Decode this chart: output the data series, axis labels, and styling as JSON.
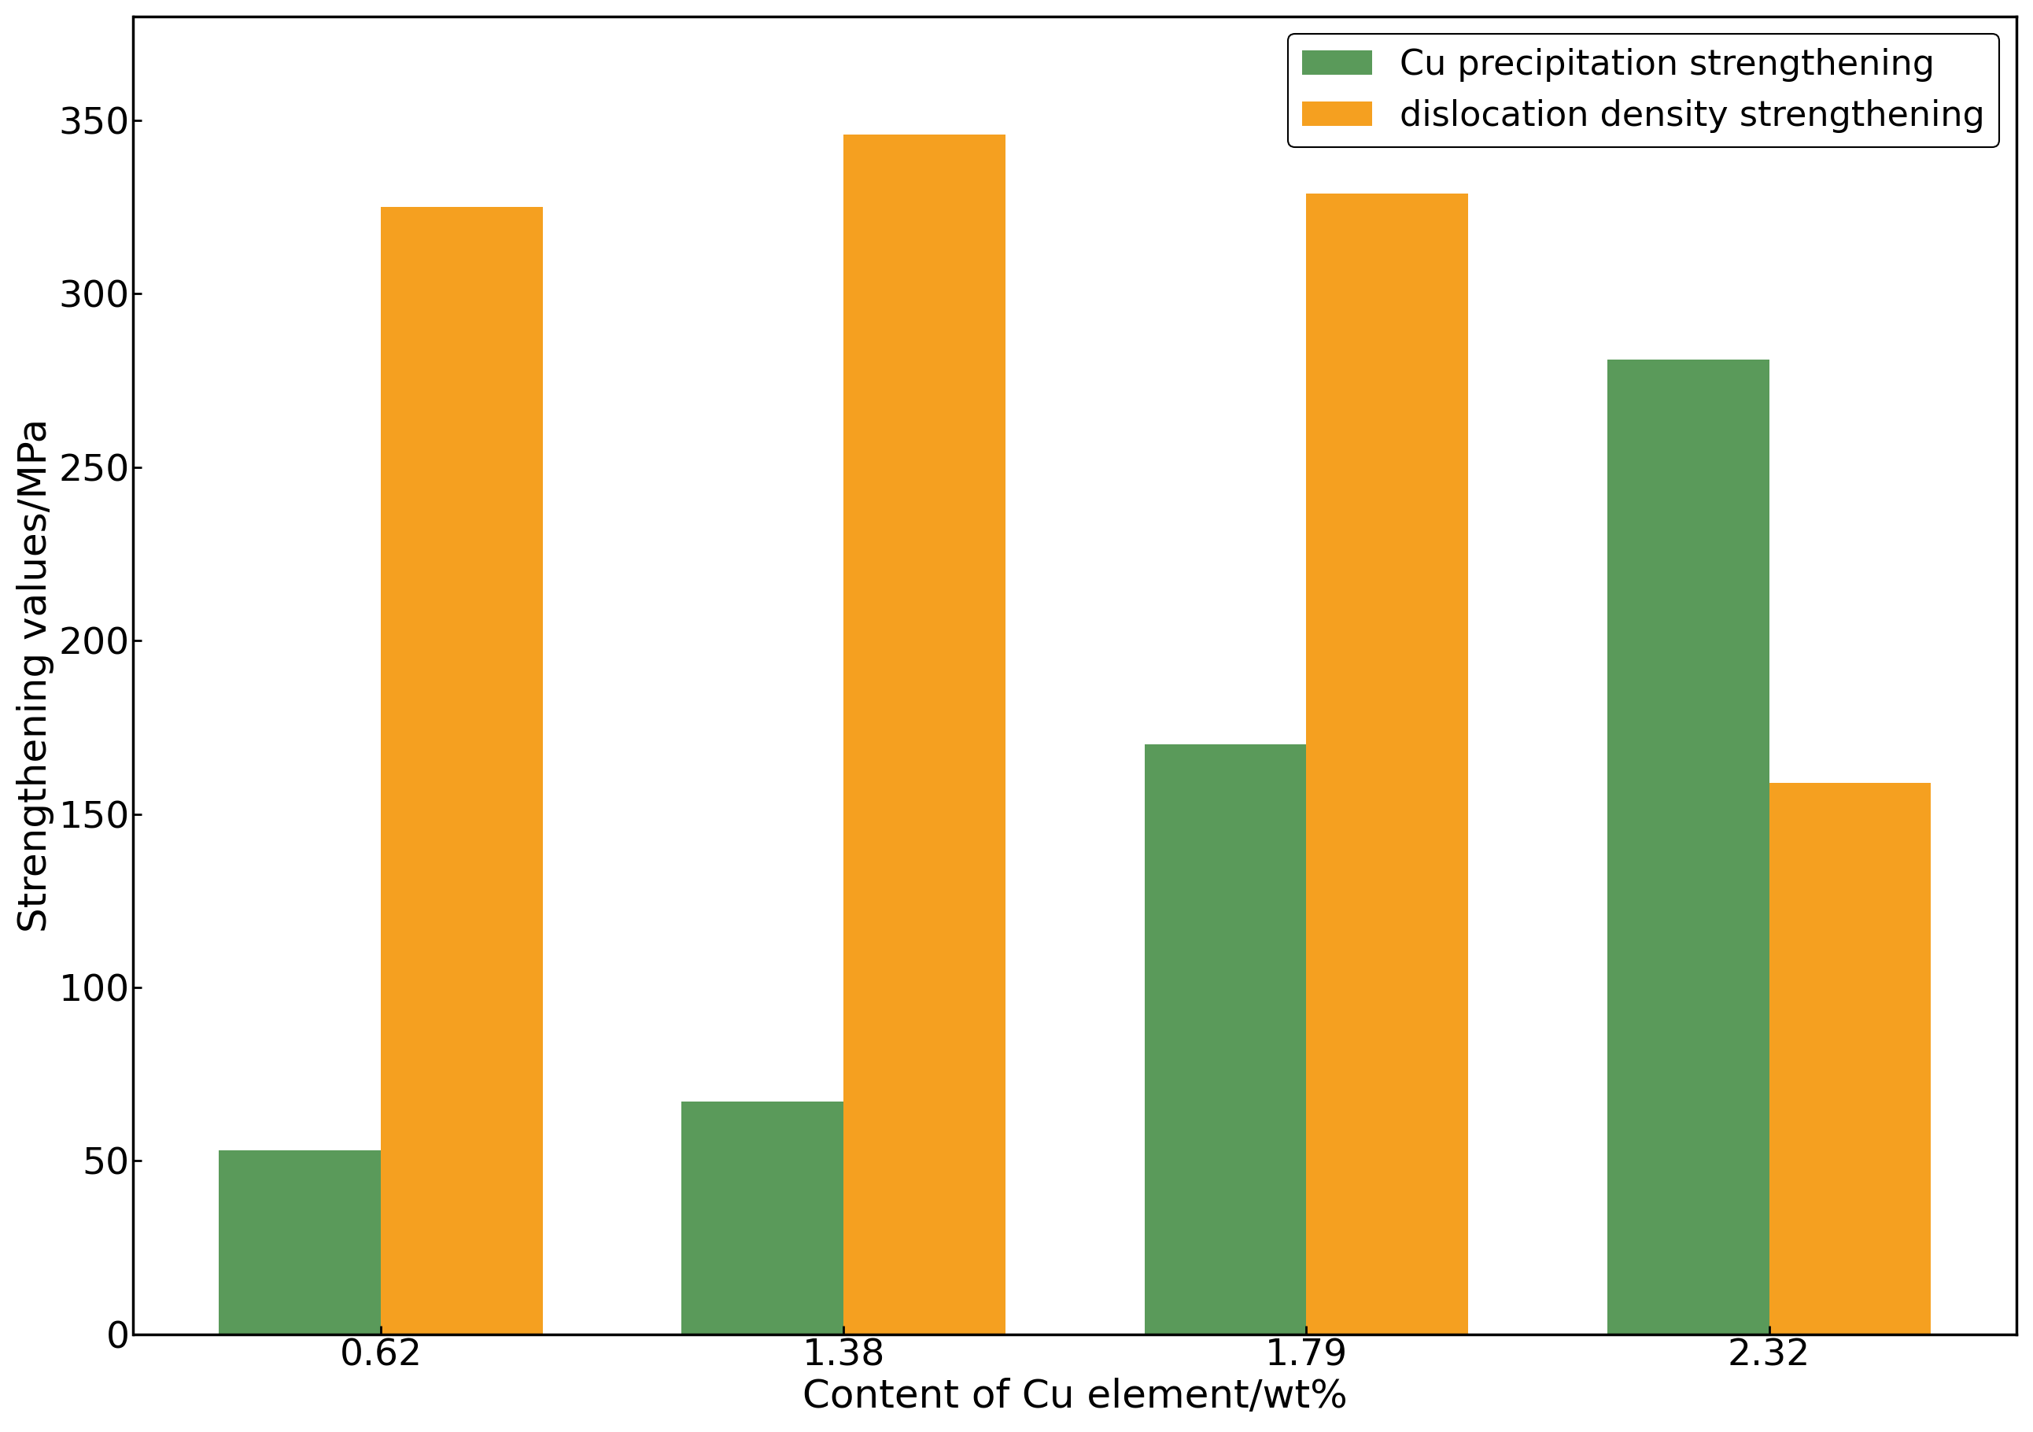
{
  "categories": [
    "0.62",
    "1.38",
    "1.79",
    "2.32"
  ],
  "cu_precipitation": [
    53,
    67,
    170,
    281
  ],
  "dislocation_density": [
    325,
    346,
    329,
    159
  ],
  "green_color": "#5a9a5a",
  "orange_color": "#f5a020",
  "xlabel": "Content of Cu element/wt%",
  "ylabel": "Strengthening values/MPa",
  "ylim": [
    0,
    380
  ],
  "yticks": [
    0,
    50,
    100,
    150,
    200,
    250,
    300,
    350
  ],
  "legend_labels": [
    "Cu precipitation strengthening",
    "dislocation density strengthening"
  ],
  "bar_width": 0.35,
  "background_color": "#ffffff",
  "xlabel_fontsize": 36,
  "ylabel_fontsize": 36,
  "tick_fontsize": 34,
  "legend_fontsize": 32
}
